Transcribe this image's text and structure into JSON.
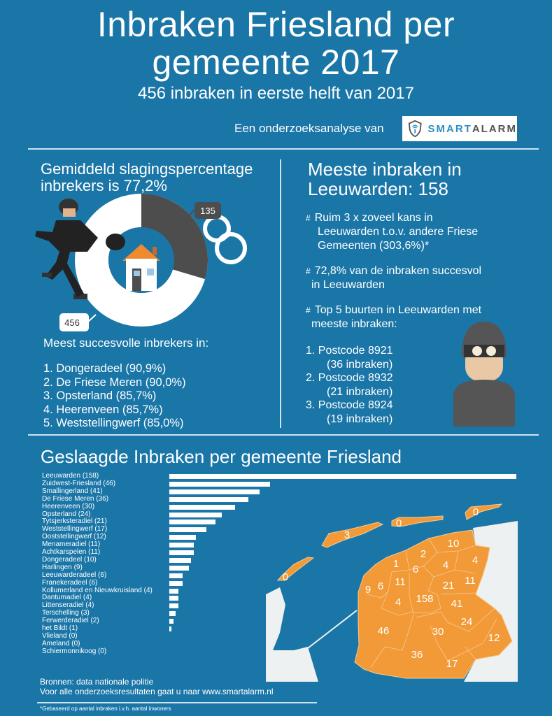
{
  "header": {
    "title_line1": "Inbraken Friesland per",
    "title_line2": "gemeente 2017",
    "subtitle": "456 inbraken in eerste helft van 2017",
    "by_text": "Een onderzoeksanalyse van",
    "logo_brand_a": "SMART",
    "logo_brand_b": "ALARM"
  },
  "left": {
    "heading_line1": "Gemiddeld slagingspercentage",
    "heading_line2": "inbrekers is 77,2%",
    "donut": {
      "caught": 135,
      "total": 456,
      "caught_label": "135",
      "total_label": "456"
    },
    "list_title": "Meest succesvolle inbrekers in:",
    "list": [
      "1. Dongeradeel (90,9%)",
      "2. De Friese Meren (90,0%)",
      "3. Opsterland (85,7%)",
      "4. Heerenveen (85,7%)",
      "5. Weststellingwerf (85,0%)"
    ]
  },
  "right": {
    "heading_line1": "Meeste inbraken in",
    "heading_line2": "Leeuwarden: 158",
    "bullets": [
      {
        "hash": "#",
        "lines": [
          "Ruim 3 x zoveel kans in",
          "Leeuwarden t.o.v. andere Friese",
          "Gemeenten (303,6%)*"
        ]
      },
      {
        "hash": "#",
        "lines": [
          "72,8% van de inbraken succesvol",
          "in Leeuwarden"
        ]
      },
      {
        "hash": "#",
        "lines": [
          "Top 5 buurten in Leeuwarden met",
          "meeste inbraken:"
        ]
      }
    ],
    "postcodes": [
      {
        "line1": "1. Postcode 8921",
        "line2": "(36 inbraken)"
      },
      {
        "line1": "2. Postcode 8932",
        "line2": "(21 inbraken)"
      },
      {
        "line1": "3. Postcode 8924",
        "line2": "(19 inbraken)"
      }
    ]
  },
  "chart_data": {
    "type": "bar",
    "title": "Geslaagde Inbraken per gemeente Friesland",
    "orientation": "horizontal",
    "labels": [
      "Leeuwarden (158)",
      "Zuidwest-Friesland (46)",
      "Smallingerland  (41)",
      "De Friese Meren (36)",
      "Heerenveen (30)",
      "Opsterland (24)",
      "Tytsjerksteradiel (21)",
      "Weststellingwerf (17)",
      "Ooststellingwerf (12)",
      "Menameradiel (11)",
      "Achtkarspelen (11)",
      "Dongeradeel (10)",
      "Harlingen  (9)",
      "Leeuwarderadeel (6)",
      "Franekeradeel (6)",
      "Kollumerland en Nieuwkruisland (4)",
      "Dantumadiel (4)",
      "Littenseradiel (4)",
      "Terschelling (3)",
      "Ferwerderadiel  (2)",
      "het Bildt (1)",
      "Vlieland (0)",
      "Ameland (0)",
      "Schiermonnikoog (0)"
    ],
    "categories": [
      "Leeuwarden",
      "Zuidwest-Friesland",
      "Smallingerland",
      "De Friese Meren",
      "Heerenveen",
      "Opsterland",
      "Tytsjerksteradiel",
      "Weststellingwerf",
      "Ooststellingwerf",
      "Menameradiel",
      "Achtkarspelen",
      "Dongeradeel",
      "Harlingen",
      "Leeuwarderadeel",
      "Franekeradeel",
      "Kollumerland en Nieuwkruisland",
      "Dantumadiel",
      "Littenseradiel",
      "Terschelling",
      "Ferwerderadiel",
      "het Bildt",
      "Vlieland",
      "Ameland",
      "Schiermonnikoog"
    ],
    "values": [
      158,
      46,
      41,
      36,
      30,
      24,
      21,
      17,
      12,
      11,
      11,
      10,
      9,
      6,
      6,
      4,
      4,
      4,
      3,
      2,
      1,
      0,
      0,
      0
    ],
    "map_labels": [
      "3",
      "0",
      "0",
      "0",
      "10",
      "2",
      "4",
      "1",
      "6",
      "4",
      "11",
      "21",
      "9",
      "6",
      "11",
      "158",
      "4",
      "41",
      "24",
      "46",
      "30",
      "12",
      "36",
      "17"
    ]
  },
  "footer": {
    "source": "Bronnen: data nationale politie",
    "more": "Voor alle onderzoeksresultaten gaat u naar www.smartalarm.nl",
    "footnote": "*Gebaseerd op aantal inbraken i.v.h. aantal inwoners"
  },
  "colors": {
    "background": "#1b76a8",
    "orange": "#f29a38",
    "dark": "#4d4d4d"
  }
}
